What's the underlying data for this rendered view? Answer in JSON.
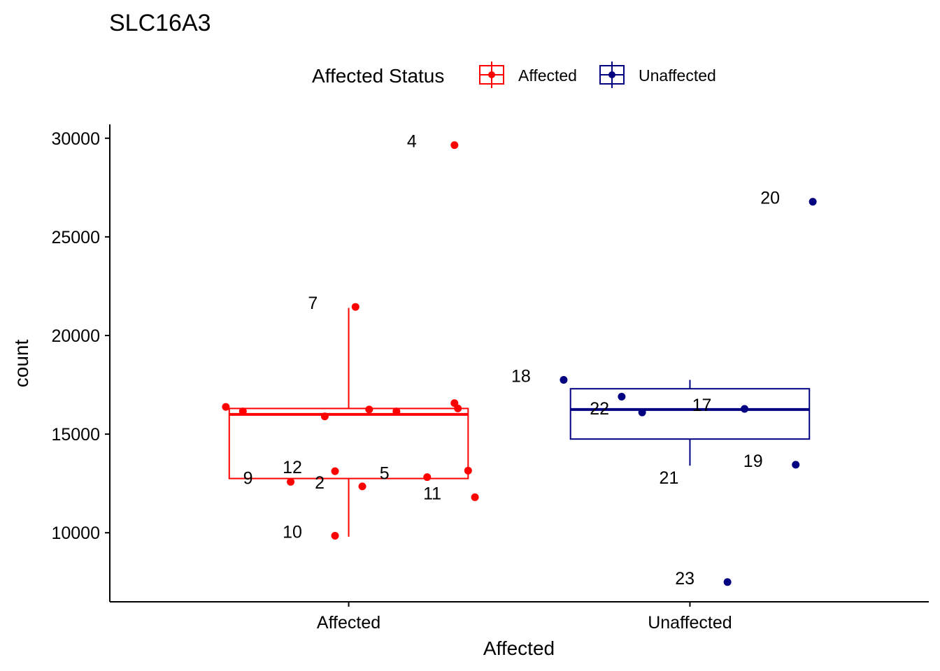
{
  "chart_data": {
    "type": "box",
    "title": "SLC16A3",
    "xlabel": "Affected",
    "ylabel": "count",
    "ylim": [
      6500,
      30700
    ],
    "yticks": [
      10000,
      15000,
      20000,
      25000,
      30000
    ],
    "grid": false,
    "legend_position": "top",
    "legend": {
      "title": "Affected Status",
      "entries": [
        {
          "label": "Affected",
          "color": "#ff0000"
        },
        {
          "label": "Unaffected",
          "color": "#000080"
        }
      ]
    },
    "categories": [
      "Affected",
      "Unaffected"
    ],
    "boxes": [
      {
        "category": "Affected",
        "color": "#ff0000",
        "whisker_low": 9800,
        "q1": 12750,
        "median": 16000,
        "q3": 16300,
        "whisker_high": 21400
      },
      {
        "category": "Unaffected",
        "color": "#000080",
        "whisker_low": 13400,
        "q1": 14750,
        "median": 16250,
        "q3": 17300,
        "whisker_high": 17750
      }
    ],
    "points": [
      {
        "category": "Affected",
        "jitter": 0.31,
        "y": 29650,
        "label": "4"
      },
      {
        "category": "Affected",
        "jitter": 0.02,
        "y": 21450,
        "label": "7"
      },
      {
        "category": "Affected",
        "jitter": -0.36,
        "y": 16380,
        "label": ""
      },
      {
        "category": "Affected",
        "jitter": -0.31,
        "y": 16150,
        "label": ""
      },
      {
        "category": "Affected",
        "jitter": -0.07,
        "y": 15900,
        "label": ""
      },
      {
        "category": "Affected",
        "jitter": 0.06,
        "y": 16250,
        "label": ""
      },
      {
        "category": "Affected",
        "jitter": 0.14,
        "y": 16150,
        "label": ""
      },
      {
        "category": "Affected",
        "jitter": 0.31,
        "y": 16570,
        "label": ""
      },
      {
        "category": "Affected",
        "jitter": 0.32,
        "y": 16300,
        "label": ""
      },
      {
        "category": "Affected",
        "jitter": -0.04,
        "y": 13120,
        "label": "12"
      },
      {
        "category": "Affected",
        "jitter": 0.23,
        "y": 12820,
        "label": "5"
      },
      {
        "category": "Affected",
        "jitter": 0.35,
        "y": 13150,
        "label": ""
      },
      {
        "category": "Affected",
        "jitter": -0.17,
        "y": 12580,
        "label": "9"
      },
      {
        "category": "Affected",
        "jitter": 0.04,
        "y": 12350,
        "label": "2"
      },
      {
        "category": "Affected",
        "jitter": 0.37,
        "y": 11800,
        "label": "11"
      },
      {
        "category": "Affected",
        "jitter": -0.04,
        "y": 9850,
        "label": "10"
      },
      {
        "category": "Unaffected",
        "jitter": 0.36,
        "y": 26780,
        "label": "20"
      },
      {
        "category": "Unaffected",
        "jitter": -0.37,
        "y": 17750,
        "label": "18"
      },
      {
        "category": "Unaffected",
        "jitter": -0.2,
        "y": 16900,
        "label": ""
      },
      {
        "category": "Unaffected",
        "jitter": -0.14,
        "y": 16100,
        "label": "22"
      },
      {
        "category": "Unaffected",
        "jitter": 0.16,
        "y": 16280,
        "label": "17"
      },
      {
        "category": "Unaffected",
        "jitter": 0.31,
        "y": 13450,
        "label": "19"
      },
      {
        "category": "Unaffected",
        "jitter": 0.11,
        "y": 7500,
        "label": "23"
      }
    ],
    "extra_labels": [
      {
        "category": "Unaffected",
        "y": 12600,
        "text": "21"
      }
    ]
  }
}
